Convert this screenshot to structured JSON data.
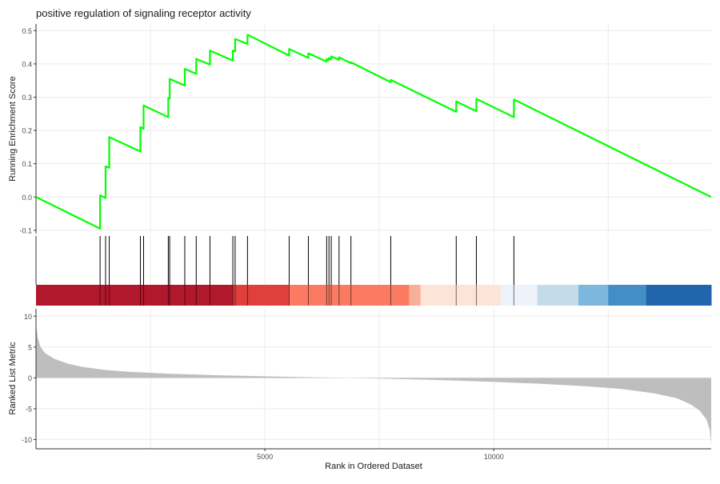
{
  "chart_data": {
    "type": "line",
    "title": "positive regulation of signaling receptor activity",
    "xlabel": "Rank in Ordered Dataset",
    "x_ticks": [
      5000,
      10000
    ],
    "x_tick_labels": [
      "5000",
      "10000"
    ],
    "xlim": [
      0,
      14750
    ],
    "grid": true,
    "panels": {
      "enrichment": {
        "ylabel": "Running Enrichment Score",
        "ylim": [
          -0.11,
          0.52
        ],
        "y_ticks": [
          -0.1,
          0.0,
          0.1,
          0.2,
          0.3,
          0.4,
          0.5
        ],
        "y_tick_labels": [
          "-0.1",
          "0.0",
          "0.1",
          "0.2",
          "0.3",
          "0.4",
          "0.5"
        ],
        "line_color": "#00ff00",
        "points": [
          [
            0,
            0.0
          ],
          [
            1400,
            -0.095
          ],
          [
            1400,
            0.005
          ],
          [
            1520,
            -0.003
          ],
          [
            1520,
            0.092
          ],
          [
            1600,
            0.088
          ],
          [
            1600,
            0.18
          ],
          [
            2280,
            0.137
          ],
          [
            2280,
            0.21
          ],
          [
            2350,
            0.205
          ],
          [
            2350,
            0.275
          ],
          [
            2890,
            0.24
          ],
          [
            2890,
            0.297
          ],
          [
            2920,
            0.296
          ],
          [
            2920,
            0.355
          ],
          [
            3250,
            0.335
          ],
          [
            3250,
            0.385
          ],
          [
            3500,
            0.37
          ],
          [
            3500,
            0.415
          ],
          [
            3800,
            0.398
          ],
          [
            3800,
            0.44
          ],
          [
            4300,
            0.41
          ],
          [
            4300,
            0.44
          ],
          [
            4350,
            0.438
          ],
          [
            4350,
            0.475
          ],
          [
            4620,
            0.46
          ],
          [
            4620,
            0.488
          ],
          [
            5530,
            0.425
          ],
          [
            5530,
            0.445
          ],
          [
            5950,
            0.418
          ],
          [
            5950,
            0.432
          ],
          [
            6350,
            0.407
          ],
          [
            6350,
            0.415
          ],
          [
            6400,
            0.411
          ],
          [
            6400,
            0.418
          ],
          [
            6450,
            0.414
          ],
          [
            6450,
            0.423
          ],
          [
            6620,
            0.412
          ],
          [
            6620,
            0.42
          ],
          [
            6880,
            0.402
          ],
          [
            6880,
            0.405
          ],
          [
            7750,
            0.345
          ],
          [
            7750,
            0.352
          ],
          [
            9180,
            0.256
          ],
          [
            9180,
            0.287
          ],
          [
            9620,
            0.258
          ],
          [
            9620,
            0.295
          ],
          [
            10440,
            0.24
          ],
          [
            10440,
            0.293
          ],
          [
            14750,
            0.0
          ]
        ]
      },
      "hits": {
        "positions": [
          1400,
          1520,
          1600,
          2280,
          2350,
          2890,
          2920,
          3250,
          3500,
          3800,
          4300,
          4350,
          4620,
          5530,
          5950,
          6350,
          6400,
          6450,
          6620,
          6880,
          7750,
          9180,
          9620,
          10440
        ]
      },
      "color_band": {
        "segments": [
          {
            "from": 0,
            "to": 4300,
            "color": "#b2182b"
          },
          {
            "from": 4300,
            "to": 5530,
            "color": "#e0403c"
          },
          {
            "from": 5530,
            "to": 8150,
            "color": "#fb7b62"
          },
          {
            "from": 8150,
            "to": 8400,
            "color": "#f7b199"
          },
          {
            "from": 8400,
            "to": 10150,
            "color": "#fde4d8"
          },
          {
            "from": 10150,
            "to": 10950,
            "color": "#eef3fb"
          },
          {
            "from": 10950,
            "to": 11850,
            "color": "#c4dcea"
          },
          {
            "from": 11850,
            "to": 12500,
            "color": "#7db7dd"
          },
          {
            "from": 12500,
            "to": 13330,
            "color": "#428ec6"
          },
          {
            "from": 13330,
            "to": 14750,
            "color": "#2166ac"
          }
        ]
      },
      "ranked_metric": {
        "ylabel": "Ranked List Metric",
        "ylim": [
          -11.5,
          11.2
        ],
        "y_ticks": [
          -10,
          -5,
          0,
          5,
          10
        ],
        "y_tick_labels": [
          "-10",
          "-5",
          "0",
          "5",
          "10"
        ],
        "fill_color": "#bebebe",
        "profile": [
          [
            0,
            8.5
          ],
          [
            40,
            6.5
          ],
          [
            100,
            5.0
          ],
          [
            200,
            4.0
          ],
          [
            400,
            3.1
          ],
          [
            700,
            2.3
          ],
          [
            1000,
            1.8
          ],
          [
            1500,
            1.3
          ],
          [
            2000,
            1.0
          ],
          [
            3000,
            0.65
          ],
          [
            4000,
            0.42
          ],
          [
            5000,
            0.25
          ],
          [
            6000,
            0.1
          ],
          [
            7000,
            -0.02
          ],
          [
            8000,
            -0.2
          ],
          [
            9000,
            -0.4
          ],
          [
            10000,
            -0.65
          ],
          [
            11000,
            -0.95
          ],
          [
            12000,
            -1.35
          ],
          [
            12800,
            -1.8
          ],
          [
            13500,
            -2.5
          ],
          [
            14000,
            -3.3
          ],
          [
            14300,
            -4.3
          ],
          [
            14500,
            -5.3
          ],
          [
            14650,
            -6.8
          ],
          [
            14720,
            -8.5
          ],
          [
            14750,
            -10.8
          ]
        ]
      }
    }
  }
}
